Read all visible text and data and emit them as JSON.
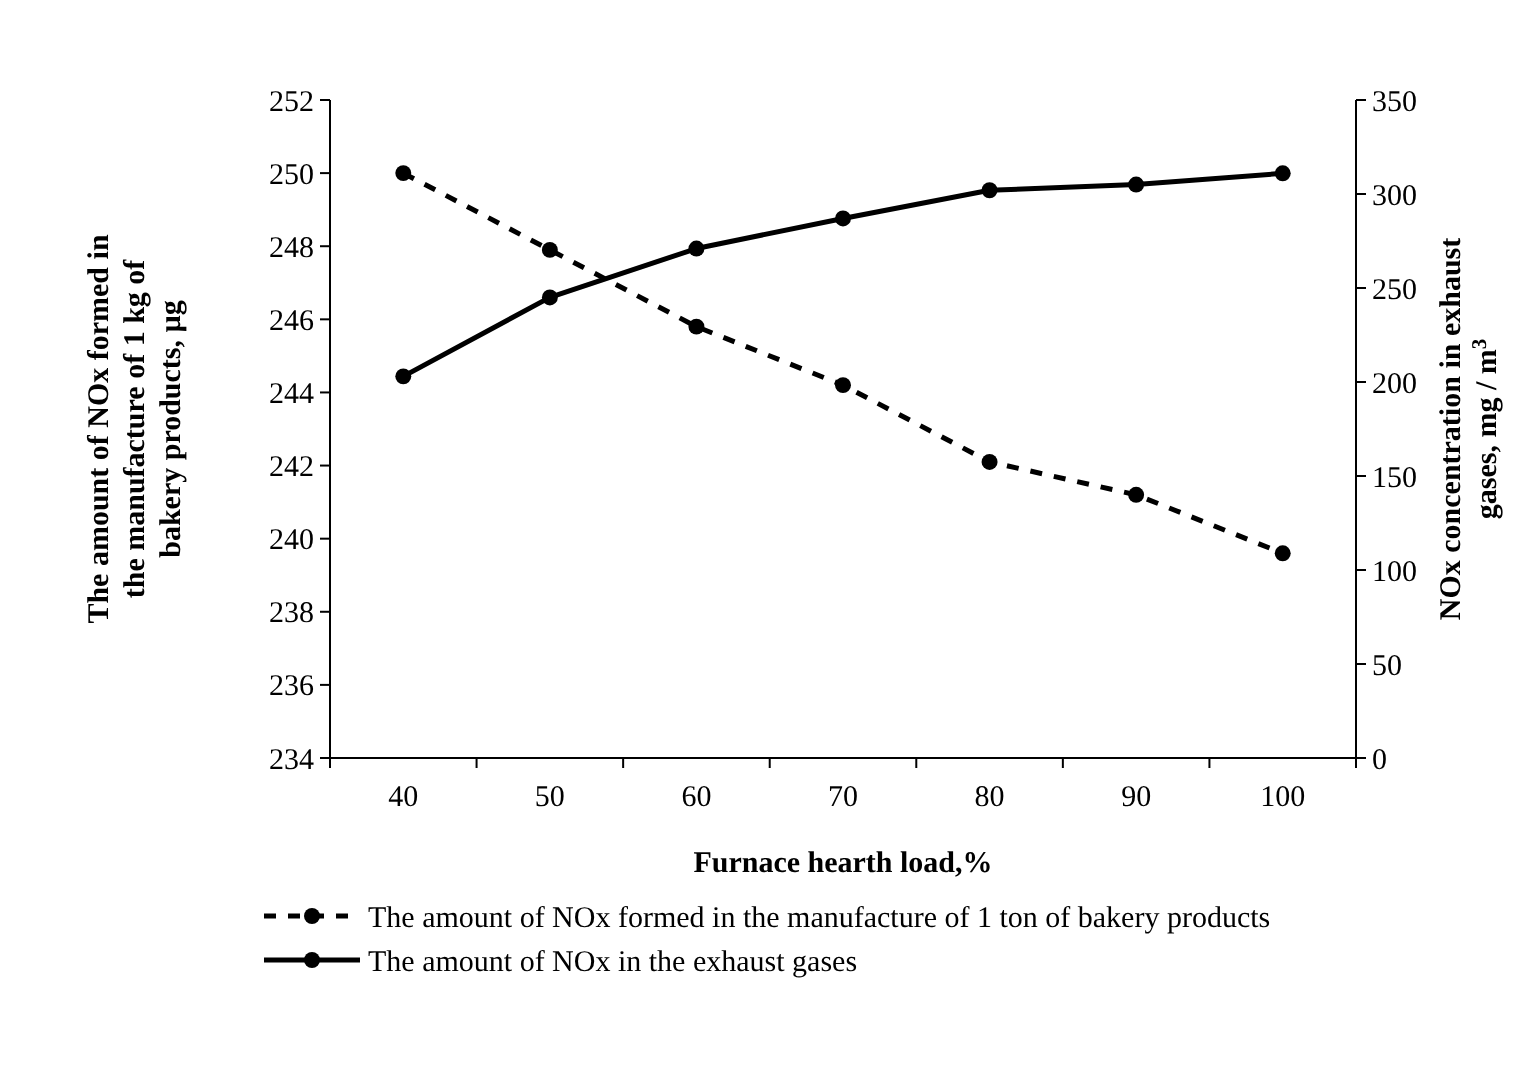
{
  "chart_data": {
    "type": "line",
    "xlabel": "Furnace hearth load,%",
    "ylabel": "The amount of NOx formed in the manufacture of 1 kg of bakery products, µg",
    "y2label": "NOx concentration in exhaust gases, mg / m$^{3}$",
    "categories": [
      "40",
      "50",
      "60",
      "70",
      "80",
      "90",
      "100"
    ],
    "series": [
      {
        "name": "The amount of NOx formed in the manufacture of 1 ton of bakery products",
        "color": "#000000",
        "line_style": "dashed",
        "values": [
          250.0,
          247.9,
          245.8,
          244.2,
          242.1,
          241.2,
          239.6
        ]
      },
      {
        "name": "The amount of NOx in the exhaust gases",
        "color": "#000000",
        "line_style": "solid",
        "axis": "y2",
        "values": [
          203,
          245,
          271,
          287,
          302,
          305,
          311
        ]
      }
    ],
    "ylim": [
      234,
      252
    ],
    "yticks": [
      234,
      236,
      238,
      240,
      242,
      244,
      246,
      248,
      250,
      252
    ],
    "y2lim": [
      0,
      350
    ],
    "y2ticks": [
      0,
      50,
      100,
      150,
      200,
      250,
      300,
      350
    ],
    "marker": "circle",
    "legend": "bottom",
    "grid": false
  }
}
